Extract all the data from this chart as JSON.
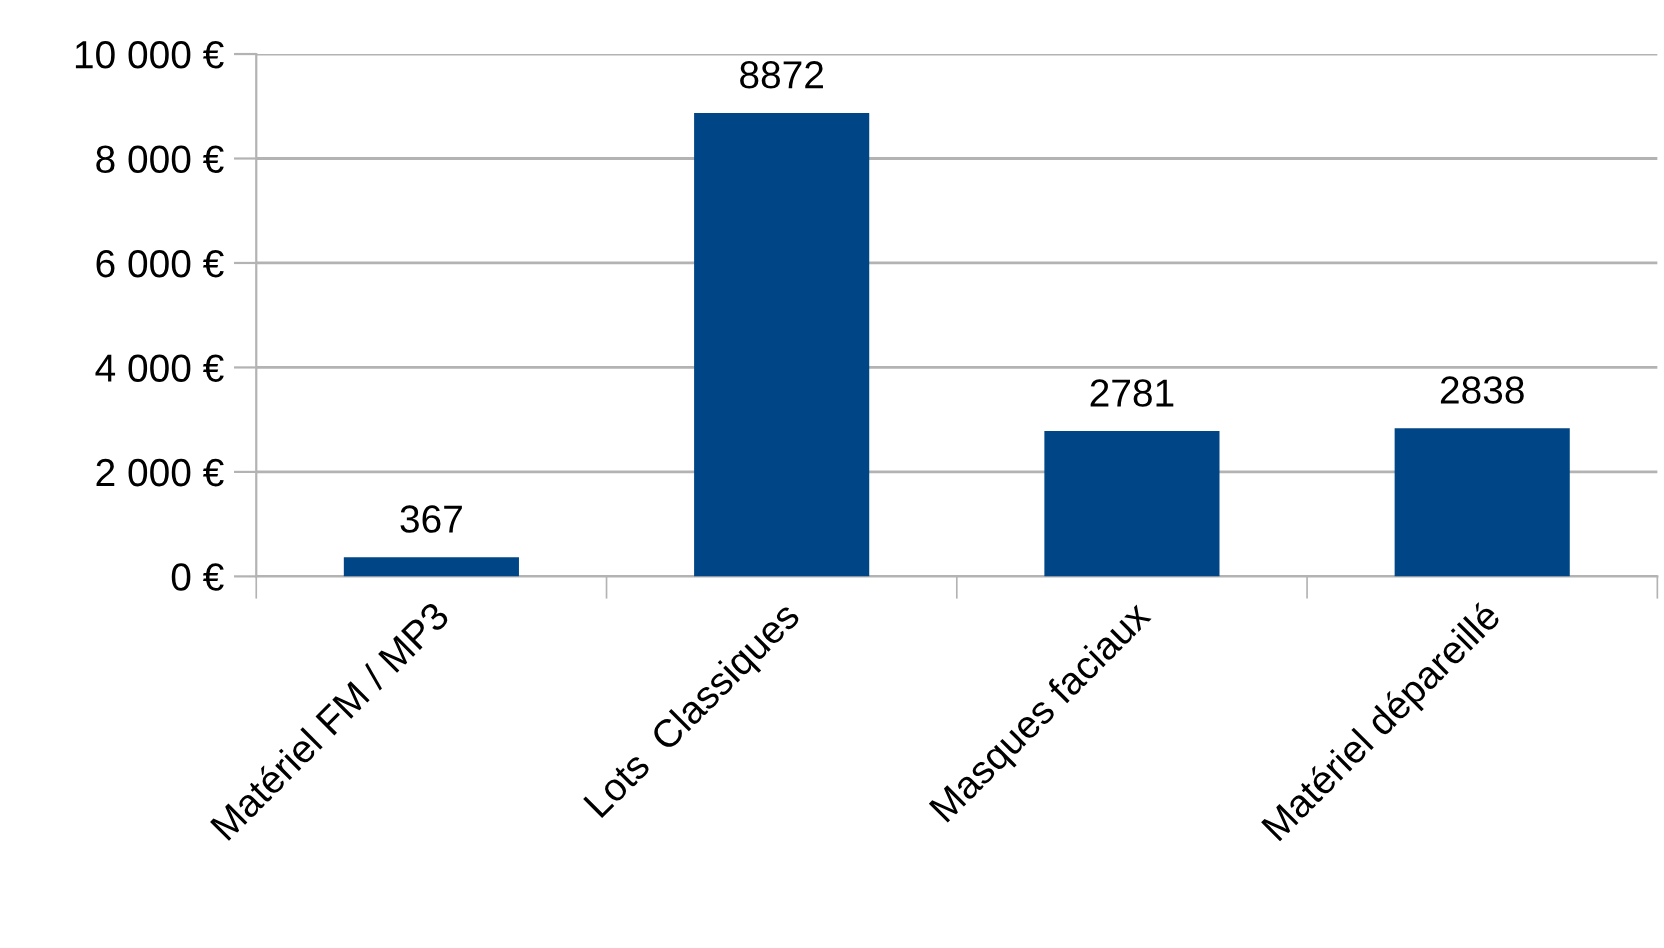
{
  "chart_data": {
    "type": "bar",
    "categories": [
      "Matériel FM / MP3",
      "Lots  Classiques",
      "Masques faciaux",
      "Matériel dépareillé"
    ],
    "values": [
      367,
      8872,
      2781,
      2838
    ],
    "color": "#004586",
    "ylim": [
      0,
      10000
    ],
    "yticks": [
      {
        "value": 0,
        "label": "0 €"
      },
      {
        "value": 2000,
        "label": "2 000 €"
      },
      {
        "value": 4000,
        "label": "4 000 €"
      },
      {
        "value": 6000,
        "label": "6 000 €"
      },
      {
        "value": 8000,
        "label": "8 000 €"
      },
      {
        "value": 10000,
        "label": "10 000 €"
      }
    ],
    "grid": "y",
    "data_labels": true
  }
}
